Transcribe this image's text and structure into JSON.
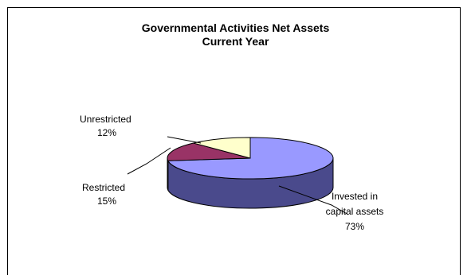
{
  "chart_data": {
    "type": "pie",
    "title": "Governmental Activities Net Assets",
    "subtitle": "Current Year",
    "slices": [
      {
        "label": "Invested in capital assets",
        "label_lines": [
          "Invested in",
          "capital assets"
        ],
        "pct_text": "73%",
        "value": 73,
        "color": "#9999ff",
        "side": "#4a4a8c"
      },
      {
        "label": "Restricted",
        "label_lines": [
          "Restricted"
        ],
        "pct_text": "15%",
        "value": 15,
        "color": "#993366",
        "side": "#5c1f3d"
      },
      {
        "label": "Unrestricted",
        "label_lines": [
          "Unrestricted"
        ],
        "pct_text": "12%",
        "value": 12,
        "color": "#ffffcc",
        "side": "#b3b38f"
      }
    ]
  }
}
